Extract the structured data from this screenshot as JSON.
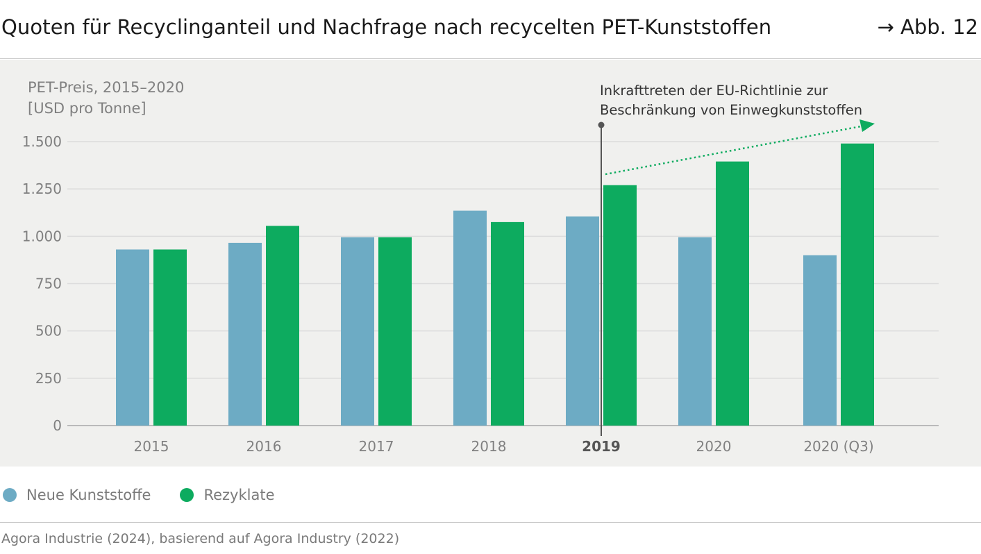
{
  "header": {
    "title": "Quoten für Recyclinganteil und Nachfrage nach recycelten PET-Kunststoffen",
    "figure_ref": "→ Abb. 12"
  },
  "colors": {
    "neue": "#6dabc4",
    "rezyklate": "#0dab5f",
    "panel": "#f0f0ee",
    "grid": "#dcdcdc",
    "marker": "#555555"
  },
  "chart_data": {
    "type": "bar",
    "title": "",
    "ylabel_line1": "PET-Preis, 2015–2020",
    "ylabel_line2": "[USD pro Tonne]",
    "categories": [
      "2015",
      "2016",
      "2017",
      "2018",
      "2019",
      "2020",
      "2020 (Q3)"
    ],
    "highlight_category": "2019",
    "series": [
      {
        "name": "Neue Kunststoffe",
        "values": [
          930,
          965,
          995,
          1135,
          1105,
          995,
          900
        ]
      },
      {
        "name": "Rezyklate",
        "values": [
          930,
          1055,
          995,
          1075,
          1270,
          1395,
          1490
        ]
      }
    ],
    "ylim": [
      0,
      1500
    ],
    "yticks": [
      0,
      250,
      500,
      750,
      1000,
      1250,
      1500
    ],
    "ytick_labels": [
      "0",
      "250",
      "500",
      "750",
      "1.000",
      "1.250",
      "1.500"
    ],
    "grid": true,
    "legend_position": "bottom-left",
    "annotation": {
      "line1": "Inkrafttreten der EU-Richtlinie zur",
      "line2": "Beschränkung von Einwegkunststoffen",
      "category": "2019"
    }
  },
  "footer": {
    "source": "Agora Industrie (2024), basierend auf Agora Industry (2022)"
  }
}
